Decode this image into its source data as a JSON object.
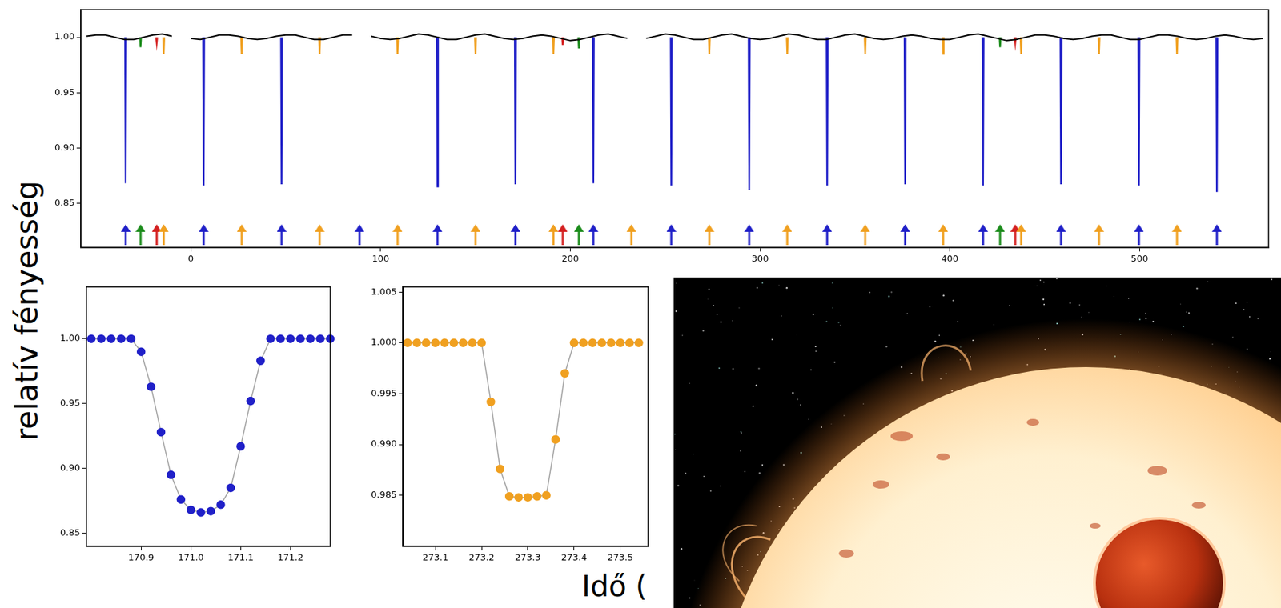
{
  "ylabel": "relatív fényesség",
  "xlabel": "Idő (",
  "chart_data": [
    {
      "type": "line",
      "xlim": [
        -58,
        568
      ],
      "xticks": [
        0,
        100,
        200,
        300,
        400,
        500
      ],
      "ylim": [
        0.81,
        1.025
      ],
      "yticks": [
        0.85,
        {
          "value": 0.9,
          "label": "0.90"
        },
        0.95,
        {
          "value": 1,
          "label": "1.00"
        }
      ],
      "grid": false,
      "series": [
        {
          "color": "#000000",
          "x": [
            -55,
            -50,
            -45,
            -40,
            -35,
            -30,
            -25,
            -20,
            -15,
            -10,
            -5,
            0,
            5,
            10,
            15,
            20,
            25,
            30,
            35,
            40,
            45,
            50,
            55,
            60,
            65,
            70,
            75,
            80,
            85,
            90,
            95,
            100,
            105,
            110,
            115,
            120,
            125,
            130,
            135,
            140,
            145,
            150,
            155,
            160,
            165,
            170,
            175,
            180,
            185,
            190,
            195,
            200,
            205,
            210,
            215,
            220,
            225,
            230,
            235,
            240,
            245,
            250,
            255,
            260,
            265,
            270,
            275,
            280,
            285,
            290,
            295,
            300,
            305,
            310,
            315,
            320,
            325,
            330,
            335,
            340,
            345,
            350,
            355,
            360,
            365,
            370,
            375,
            380,
            385,
            390,
            395,
            400,
            405,
            410,
            415,
            420,
            425,
            430,
            435,
            440,
            445,
            450,
            455,
            460,
            465,
            470,
            475,
            480,
            485,
            490,
            495,
            500,
            505,
            510,
            515,
            520,
            525,
            530,
            535,
            540,
            545,
            550,
            555,
            560,
            565
          ],
          "values": [
            1.001,
            1.002,
            1.002,
            1.0,
            0.998,
            0.998,
            1.0,
            1.002,
            1.003,
            1.001,
            null,
            0.999,
            0.998,
            1.0,
            1.002,
            1.002,
            1.001,
            0.999,
            0.998,
            0.999,
            1.001,
            1.002,
            1.002,
            1.0,
            0.998,
            0.998,
            1.0,
            1.002,
            1.002,
            null,
            1.001,
            0.999,
            0.998,
            0.999,
            1.001,
            1.003,
            1.002,
            1.0,
            0.998,
            0.998,
            1.0,
            1.002,
            1.003,
            1.001,
            0.999,
            0.998,
            0.999,
            1.001,
            1.002,
            1.001,
            0.999,
            0.997,
            0.998,
            1.0,
            1.002,
            1.003,
            1.001,
            0.999,
            null,
            0.999,
            1.001,
            1.003,
            1.002,
            1.0,
            0.998,
            0.998,
            1.0,
            1.002,
            1.003,
            1.001,
            0.999,
            0.998,
            0.999,
            1.001,
            1.003,
            1.002,
            1.0,
            0.998,
            0.998,
            1.0,
            1.002,
            1.003,
            1.001,
            0.999,
            0.998,
            0.999,
            1.001,
            1.002,
            1.001,
            0.999,
            0.998,
            0.998,
            1.0,
            1.002,
            1.003,
            1.001,
            0.999,
            0.997,
            0.998,
            1.0,
            1.002,
            1.002,
            1.001,
            0.999,
            0.998,
            0.999,
            1.001,
            1.002,
            1.002,
            1.0,
            0.998,
            0.998,
            1.0,
            1.002,
            1.002,
            1.001,
            0.999,
            0.998,
            0.999,
            1.001,
            1.002,
            1.001,
            0.999,
            0.998,
            0.999
          ]
        },
        {
          "color": "#2020c8",
          "x": [
            -34.65,
            -34.35,
            -34.05,
            -33.85,
            6.43,
            6.73,
            7.03,
            7.23,
            47.51,
            47.81,
            48.11,
            48.31,
            129.67,
            129.97,
            130.27,
            130.47,
            170.75,
            171.05,
            171.35,
            171.55,
            211.83,
            212.13,
            212.43,
            212.63,
            252.91,
            253.21,
            253.51,
            253.71,
            293.99,
            294.29,
            294.59,
            294.79,
            335.07,
            335.37,
            335.67,
            335.87,
            376.15,
            376.45,
            376.75,
            376.95,
            417.23,
            417.53,
            417.83,
            418.03,
            458.31,
            458.61,
            458.91,
            459.11,
            499.39,
            499.69,
            499.99,
            500.19,
            540.47,
            540.77,
            541.07,
            541.27
          ],
          "values": [
            1.0,
            0.868,
            1.0,
            null,
            1.0,
            0.866,
            1.0,
            null,
            1.0,
            0.867,
            1.0,
            null,
            1.0,
            0.865,
            1.0,
            null,
            1.0,
            0.867,
            1.0,
            null,
            1.0,
            0.868,
            1.0,
            null,
            1.0,
            0.866,
            1.0,
            null,
            1.0,
            0.862,
            1.0,
            null,
            1.0,
            0.866,
            1.0,
            null,
            1.0,
            0.867,
            1.0,
            null,
            1.0,
            0.866,
            1.0,
            null,
            1.0,
            0.867,
            1.0,
            null,
            1.0,
            0.866,
            1.0,
            null,
            1.0,
            0.86,
            1.0,
            null
          ]
        },
        {
          "color": "#f0a020",
          "x": [
            -14.6,
            -14.3,
            -14.0,
            -13.8,
            26.48,
            26.78,
            27.08,
            27.28,
            67.56,
            67.86,
            68.16,
            68.36,
            108.64,
            108.94,
            109.24,
            109.44,
            149.72,
            150.02,
            150.32,
            150.52,
            190.8,
            191.1,
            191.4,
            191.6,
            272.96,
            273.26,
            273.56,
            273.76,
            314.04,
            314.34,
            314.64,
            314.84,
            355.12,
            355.42,
            355.72,
            355.92,
            396.2,
            396.5,
            396.8,
            397.0,
            437.28,
            437.58,
            437.88,
            438.08,
            478.36,
            478.66,
            478.96,
            479.16,
            519.44,
            519.74,
            520.04,
            520.24
          ],
          "values": [
            1.0,
            0.985,
            1.0,
            null,
            1.0,
            0.985,
            1.0,
            null,
            1.0,
            0.985,
            1.0,
            null,
            1.0,
            0.985,
            1.0,
            null,
            1.0,
            0.985,
            1.0,
            null,
            1.0,
            0.985,
            1.0,
            null,
            1.0,
            0.985,
            1.0,
            null,
            1.0,
            0.985,
            1.0,
            null,
            1.0,
            0.985,
            1.0,
            null,
            1.0,
            0.985,
            1.0,
            null,
            1.0,
            0.985,
            1.0,
            null,
            1.0,
            0.985,
            1.0,
            null,
            1.0,
            0.985,
            1.0,
            null
          ]
        },
        {
          "color": "#1c8c1c",
          "x": [
            -26.8,
            -26.5,
            -26.2,
            -26.0,
            204.2,
            204.5,
            204.8,
            205.0,
            426.2,
            426.5,
            426.8,
            427.0
          ],
          "values": [
            1.0,
            0.991,
            1.0,
            null,
            1.0,
            0.99,
            1.0,
            null,
            1.0,
            0.991,
            1.0,
            null
          ]
        },
        {
          "color": "#d42020",
          "x": [
            -18.3,
            -18.0,
            -17.7,
            -17.5,
            195.7,
            196.0,
            196.3,
            196.5,
            434.2,
            434.5,
            434.8,
            435.0
          ],
          "values": [
            1.0,
            0.995,
            1.0,
            null,
            1.0,
            0.993,
            1.0,
            null,
            1.0,
            0.995,
            1.0,
            null
          ]
        },
        {
          "type": "scatter",
          "marker": "arrow",
          "color": "#2020c8",
          "x": [
            -34.35,
            6.73,
            47.81,
            88.89,
            129.97,
            171.05,
            212.13,
            253.21,
            294.29,
            335.37,
            376.45,
            417.53,
            458.61,
            499.69,
            540.77
          ],
          "values": [
            0.8215,
            0.8215,
            0.8215,
            0.8215,
            0.8215,
            0.8215,
            0.8215,
            0.8215,
            0.8215,
            0.8215,
            0.8215,
            0.8215,
            0.8215,
            0.8215,
            0.8215
          ]
        },
        {
          "type": "scatter",
          "marker": "arrow",
          "color": "#f0a020",
          "x": [
            -14.3,
            26.78,
            67.86,
            108.94,
            150.02,
            191.1,
            232.18,
            273.26,
            314.34,
            355.42,
            396.5,
            437.58,
            478.66,
            519.74
          ],
          "values": [
            0.8215,
            0.8215,
            0.8215,
            0.8215,
            0.8215,
            0.8215,
            0.8215,
            0.8215,
            0.8215,
            0.8215,
            0.8215,
            0.8215,
            0.8215,
            0.8215
          ]
        },
        {
          "type": "scatter",
          "marker": "arrow",
          "color": "#1c8c1c",
          "x": [
            -26.5,
            204.5,
            426.5
          ],
          "values": [
            0.8215,
            0.8215,
            0.8215
          ]
        },
        {
          "type": "scatter",
          "marker": "arrow",
          "color": "#d42020",
          "x": [
            -18.0,
            196.0,
            434.5
          ],
          "values": [
            0.8215,
            0.8215,
            0.8215
          ]
        }
      ]
    },
    {
      "type": "line",
      "xlim": [
        170.79,
        171.28
      ],
      "xticks": [
        170.9,
        {
          "value": 171,
          "label": "171.0"
        },
        171.1,
        171.2
      ],
      "ylim": [
        0.84,
        1.04
      ],
      "yticks": [
        0.85,
        {
          "value": 0.9,
          "label": "0.90"
        },
        0.95,
        {
          "value": 1,
          "label": "1.00"
        }
      ],
      "grid": false,
      "series": [
        {
          "color": "#2020c8",
          "marker": "circle",
          "x": [
            170.8,
            170.82,
            170.84,
            170.86,
            170.88,
            170.9,
            170.92,
            170.94,
            170.96,
            170.98,
            171.0,
            171.02,
            171.04,
            171.06,
            171.08,
            171.1,
            171.12,
            171.14,
            171.16,
            171.18,
            171.2,
            171.22,
            171.24,
            171.26,
            171.28
          ],
          "values": [
            1.0,
            1.0,
            1.0,
            1.0,
            1.0,
            0.99,
            0.963,
            0.928,
            0.895,
            0.876,
            0.868,
            0.866,
            0.867,
            0.872,
            0.885,
            0.917,
            0.952,
            0.983,
            1.0,
            1.0,
            1.0,
            1.0,
            1.0,
            1.0,
            1.0
          ]
        }
      ]
    },
    {
      "type": "line",
      "xlim": [
        273.03,
        273.56
      ],
      "xticks": [
        273.1,
        273.2,
        273.3,
        273.4,
        273.5
      ],
      "ylim": [
        0.98,
        1.0055
      ],
      "yticks": [
        0.985,
        {
          "value": 0.99,
          "label": "0.990"
        },
        0.995,
        {
          "value": 1,
          "label": "1.000"
        },
        1.005
      ],
      "grid": false,
      "series": [
        {
          "color": "#f0a020",
          "marker": "circle",
          "x": [
            273.04,
            273.06,
            273.08,
            273.1,
            273.12,
            273.14,
            273.16,
            273.18,
            273.2,
            273.22,
            273.24,
            273.26,
            273.28,
            273.3,
            273.32,
            273.34,
            273.36,
            273.38,
            273.4,
            273.42,
            273.44,
            273.46,
            273.48,
            273.5,
            273.52,
            273.54
          ],
          "values": [
            1.0,
            1.0,
            1.0,
            1.0,
            1.0,
            1.0,
            1.0,
            1.0,
            1.0,
            0.9942,
            0.9876,
            0.9849,
            0.9848,
            0.9848,
            0.9849,
            0.985,
            0.9905,
            0.997,
            1.0,
            1.0,
            1.0,
            1.0,
            1.0,
            1.0,
            1.0,
            1.0
          ]
        }
      ]
    }
  ]
}
